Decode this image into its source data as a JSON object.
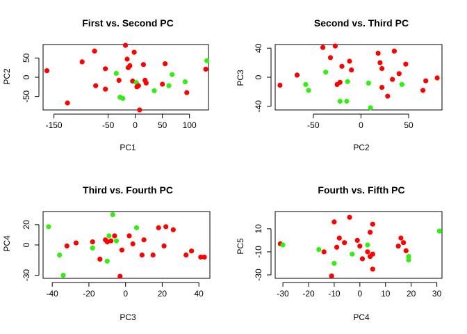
{
  "colors": {
    "red": "#ff0000",
    "green": "#33ee11"
  },
  "chart_data": [
    {
      "type": "scatter",
      "title": "First vs. Second PC",
      "xlabel": "PC1",
      "ylabel": "PC2",
      "xlim": [
        -170,
        135
      ],
      "ylim": [
        -85,
        85
      ],
      "xticks": [
        -150,
        -50,
        0,
        50,
        100
      ],
      "yticks": [
        -50,
        0,
        50
      ],
      "points": [
        {
          "x": -163,
          "y": 17,
          "color": "red"
        },
        {
          "x": -125,
          "y": -67,
          "color": "red"
        },
        {
          "x": -98,
          "y": 40,
          "color": "red"
        },
        {
          "x": -75,
          "y": 68,
          "color": "red"
        },
        {
          "x": -73,
          "y": -22,
          "color": "red"
        },
        {
          "x": -55,
          "y": 22,
          "color": "red"
        },
        {
          "x": -55,
          "y": -31,
          "color": "red"
        },
        {
          "x": -35,
          "y": 10,
          "color": "green"
        },
        {
          "x": -30,
          "y": -8,
          "color": "red"
        },
        {
          "x": -28,
          "y": -52,
          "color": "green"
        },
        {
          "x": -23,
          "y": -55,
          "color": "green"
        },
        {
          "x": -18,
          "y": 83,
          "color": "red"
        },
        {
          "x": -15,
          "y": 47,
          "color": "red"
        },
        {
          "x": -13,
          "y": 25,
          "color": "red"
        },
        {
          "x": -10,
          "y": 30,
          "color": "red"
        },
        {
          "x": -5,
          "y": -10,
          "color": "red"
        },
        {
          "x": -2,
          "y": 65,
          "color": "red"
        },
        {
          "x": 2,
          "y": -14,
          "color": "green"
        },
        {
          "x": 3,
          "y": -25,
          "color": "red"
        },
        {
          "x": 6,
          "y": -22,
          "color": "red"
        },
        {
          "x": 8,
          "y": -85,
          "color": "red"
        },
        {
          "x": 15,
          "y": 33,
          "color": "red"
        },
        {
          "x": 18,
          "y": -8,
          "color": "red"
        },
        {
          "x": 20,
          "y": -15,
          "color": "red"
        },
        {
          "x": 35,
          "y": -35,
          "color": "green"
        },
        {
          "x": 50,
          "y": -18,
          "color": "red"
        },
        {
          "x": 55,
          "y": 35,
          "color": "red"
        },
        {
          "x": 62,
          "y": -22,
          "color": "green"
        },
        {
          "x": 68,
          "y": 7,
          "color": "green"
        },
        {
          "x": 92,
          "y": -12,
          "color": "green"
        },
        {
          "x": 95,
          "y": -40,
          "color": "red"
        },
        {
          "x": 130,
          "y": 21,
          "color": "red"
        },
        {
          "x": 132,
          "y": 43,
          "color": "green"
        }
      ]
    },
    {
      "type": "scatter",
      "title": "Second vs. Third PC",
      "xlabel": "PC2",
      "ylabel": "PC3",
      "xlim": [
        -90,
        85
      ],
      "ylim": [
        -45,
        45
      ],
      "xticks": [
        -50,
        0,
        50
      ],
      "yticks": [
        -40,
        0,
        40
      ],
      "points": [
        {
          "x": -85,
          "y": -11,
          "color": "red"
        },
        {
          "x": -67,
          "y": 3,
          "color": "red"
        },
        {
          "x": -58,
          "y": -10,
          "color": "green"
        },
        {
          "x": -55,
          "y": -18,
          "color": "green"
        },
        {
          "x": -40,
          "y": 41,
          "color": "red"
        },
        {
          "x": -37,
          "y": 7,
          "color": "green"
        },
        {
          "x": -32,
          "y": 27,
          "color": "red"
        },
        {
          "x": -27,
          "y": 43,
          "color": "red"
        },
        {
          "x": -25,
          "y": -10,
          "color": "red"
        },
        {
          "x": -22,
          "y": -7,
          "color": "red"
        },
        {
          "x": -22,
          "y": -33,
          "color": "green"
        },
        {
          "x": -20,
          "y": 15,
          "color": "red"
        },
        {
          "x": -15,
          "y": -33,
          "color": "green"
        },
        {
          "x": -14,
          "y": -6,
          "color": "green"
        },
        {
          "x": -12,
          "y": 22,
          "color": "red"
        },
        {
          "x": -10,
          "y": 10,
          "color": "red"
        },
        {
          "x": 8,
          "y": -8,
          "color": "green"
        },
        {
          "x": 10,
          "y": -42,
          "color": "green"
        },
        {
          "x": 18,
          "y": 33,
          "color": "red"
        },
        {
          "x": 20,
          "y": 20,
          "color": "red"
        },
        {
          "x": 22,
          "y": 12,
          "color": "red"
        },
        {
          "x": 22,
          "y": -14,
          "color": "red"
        },
        {
          "x": 28,
          "y": -26,
          "color": "red"
        },
        {
          "x": 33,
          "y": -3,
          "color": "red"
        },
        {
          "x": 35,
          "y": 36,
          "color": "red"
        },
        {
          "x": 40,
          "y": 5,
          "color": "red"
        },
        {
          "x": 43,
          "y": -10,
          "color": "green"
        },
        {
          "x": 47,
          "y": 18,
          "color": "red"
        },
        {
          "x": 65,
          "y": -18,
          "color": "red"
        },
        {
          "x": 68,
          "y": -5,
          "color": "red"
        },
        {
          "x": 80,
          "y": -1,
          "color": "red"
        }
      ]
    },
    {
      "type": "scatter",
      "title": "Third vs. Fourth PC",
      "xlabel": "PC3",
      "ylabel": "PC4",
      "xlim": [
        -45,
        46
      ],
      "ylim": [
        -33,
        33
      ],
      "xticks": [
        -40,
        -20,
        0,
        20,
        40
      ],
      "yticks": [
        -30,
        0,
        20
      ],
      "points": [
        {
          "x": -42,
          "y": 18,
          "color": "green"
        },
        {
          "x": -36,
          "y": -10,
          "color": "green"
        },
        {
          "x": -34,
          "y": -30,
          "color": "green"
        },
        {
          "x": -32,
          "y": -1,
          "color": "red"
        },
        {
          "x": -27,
          "y": 2,
          "color": "red"
        },
        {
          "x": -18,
          "y": 3,
          "color": "red"
        },
        {
          "x": -18,
          "y": -3,
          "color": "green"
        },
        {
          "x": -14,
          "y": -14,
          "color": "red"
        },
        {
          "x": -11,
          "y": 5,
          "color": "red"
        },
        {
          "x": -10,
          "y": 3,
          "color": "red"
        },
        {
          "x": -10,
          "y": -16,
          "color": "green"
        },
        {
          "x": -9,
          "y": 9,
          "color": "green"
        },
        {
          "x": -8,
          "y": 4,
          "color": "red"
        },
        {
          "x": -7,
          "y": 30,
          "color": "green"
        },
        {
          "x": -6,
          "y": 9,
          "color": "red"
        },
        {
          "x": -5,
          "y": 4,
          "color": "green"
        },
        {
          "x": -3,
          "y": -31,
          "color": "red"
        },
        {
          "x": -2,
          "y": -5,
          "color": "red"
        },
        {
          "x": 2,
          "y": 9,
          "color": "red"
        },
        {
          "x": 4,
          "y": 1,
          "color": "red"
        },
        {
          "x": 6,
          "y": 17,
          "color": "green"
        },
        {
          "x": 9,
          "y": -10,
          "color": "red"
        },
        {
          "x": 10,
          "y": 5,
          "color": "red"
        },
        {
          "x": 15,
          "y": -10,
          "color": "red"
        },
        {
          "x": 18,
          "y": 17,
          "color": "red"
        },
        {
          "x": 21,
          "y": -1,
          "color": "red"
        },
        {
          "x": 22,
          "y": 18,
          "color": "red"
        },
        {
          "x": 26,
          "y": 15,
          "color": "red"
        },
        {
          "x": 33,
          "y": -10,
          "color": "red"
        },
        {
          "x": 36,
          "y": -6,
          "color": "red"
        },
        {
          "x": 41,
          "y": -12,
          "color": "red"
        },
        {
          "x": 43,
          "y": -12,
          "color": "red"
        }
      ]
    },
    {
      "type": "scatter",
      "title": "Fourth vs. Fifth PC",
      "xlabel": "PC4",
      "ylabel": "PC5",
      "xlim": [
        -33,
        32
      ],
      "ylim": [
        -33,
        25
      ],
      "xticks": [
        -30,
        -20,
        -10,
        0,
        10,
        20,
        30
      ],
      "yticks": [
        -30,
        -10,
        10
      ],
      "points": [
        {
          "x": -31,
          "y": -3,
          "color": "red"
        },
        {
          "x": -30,
          "y": -4,
          "color": "green"
        },
        {
          "x": -16,
          "y": -8,
          "color": "green"
        },
        {
          "x": -14,
          "y": -10,
          "color": "red"
        },
        {
          "x": -11,
          "y": -31,
          "color": "red"
        },
        {
          "x": -10,
          "y": 16,
          "color": "red"
        },
        {
          "x": -10,
          "y": -20,
          "color": "green"
        },
        {
          "x": -9,
          "y": -6,
          "color": "red"
        },
        {
          "x": -8,
          "y": 2,
          "color": "red"
        },
        {
          "x": -6,
          "y": -2,
          "color": "red"
        },
        {
          "x": -4,
          "y": 20,
          "color": "red"
        },
        {
          "x": -3,
          "y": -12,
          "color": "green"
        },
        {
          "x": -1,
          "y": 0,
          "color": "red"
        },
        {
          "x": 0,
          "y": -5,
          "color": "red"
        },
        {
          "x": 1,
          "y": -16,
          "color": "red"
        },
        {
          "x": 3,
          "y": -4,
          "color": "green"
        },
        {
          "x": 3,
          "y": -10,
          "color": "red"
        },
        {
          "x": 4,
          "y": 7,
          "color": "red"
        },
        {
          "x": 4,
          "y": -14,
          "color": "red"
        },
        {
          "x": 5,
          "y": 14,
          "color": "red"
        },
        {
          "x": 5,
          "y": -12,
          "color": "red"
        },
        {
          "x": 5,
          "y": -25,
          "color": "red"
        },
        {
          "x": 15,
          "y": -5,
          "color": "red"
        },
        {
          "x": 16,
          "y": 2,
          "color": "red"
        },
        {
          "x": 17,
          "y": -2,
          "color": "red"
        },
        {
          "x": 18,
          "y": -9,
          "color": "red"
        },
        {
          "x": 19,
          "y": -17,
          "color": "green"
        },
        {
          "x": 19,
          "y": -14,
          "color": "green"
        },
        {
          "x": 31,
          "y": 8,
          "color": "green"
        }
      ]
    }
  ]
}
